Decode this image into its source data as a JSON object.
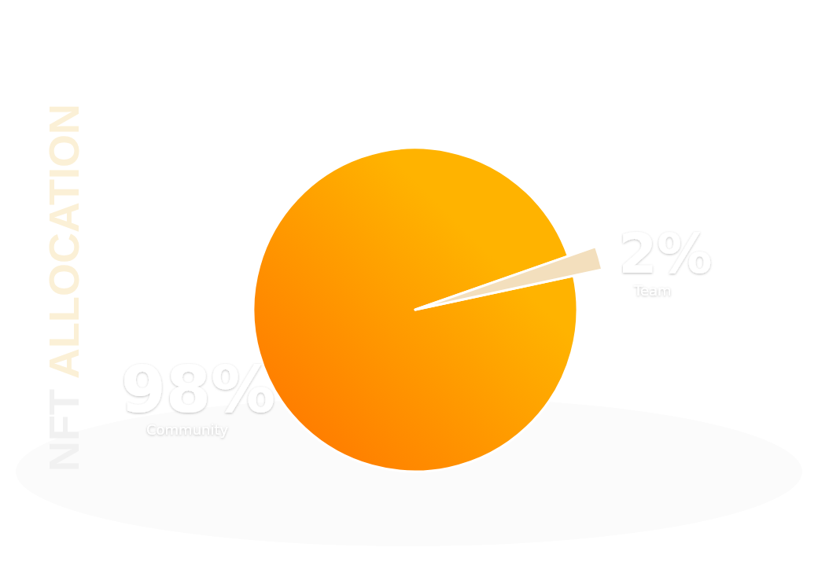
{
  "chart_data": {
    "type": "pie",
    "title": "NFT ALLOCATION",
    "categories": [
      "Community",
      "Team"
    ],
    "values": [
      98,
      2
    ],
    "value_labels": [
      "98%",
      "2%"
    ],
    "colors": [
      "#ffb300",
      "#f3dfbd"
    ],
    "data_labels": true
  }
}
